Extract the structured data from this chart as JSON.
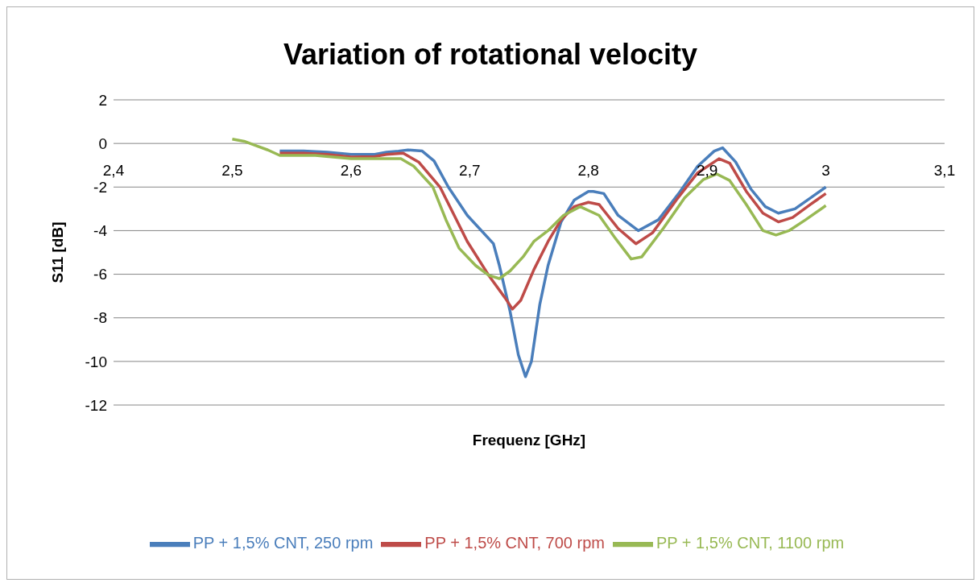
{
  "chart_data": {
    "type": "line",
    "title": "Variation of rotational velocity",
    "xlabel": "Frequenz [GHz]",
    "ylabel": "S11 [dB]",
    "xlim": [
      2.4,
      3.1
    ],
    "xticks": [
      {
        "value": 2.4,
        "label": "2,4"
      },
      {
        "value": 2.5,
        "label": "2,5"
      },
      {
        "value": 2.6,
        "label": "2,6"
      },
      {
        "value": 2.7,
        "label": "2,7"
      },
      {
        "value": 2.8,
        "label": "2,8"
      },
      {
        "value": 2.9,
        "label": "2,9"
      },
      3,
      {
        "value": 3.1,
        "label": "3,1"
      }
    ],
    "ylim": [
      -12,
      2
    ],
    "yticks": [
      -12,
      -10,
      -8,
      -6,
      -4,
      -2,
      0,
      2
    ],
    "grid": "y",
    "legend": "bottom",
    "marker": "none",
    "line_style": "solid",
    "series": [
      {
        "name": "PP + 1,5% CNT, 250 rpm",
        "color": "#4a7ebb",
        "x": [
          2.54,
          2.56,
          2.58,
          2.6,
          2.62,
          2.63,
          2.64,
          2.648,
          2.66,
          2.67,
          2.675,
          2.682,
          2.698,
          2.72,
          2.725,
          2.734,
          2.741,
          2.747,
          2.752,
          2.759,
          2.766,
          2.777,
          2.788,
          2.8,
          2.804,
          2.813,
          2.825,
          2.842,
          2.859,
          2.876,
          2.892,
          2.906,
          2.913,
          2.924,
          2.937,
          2.949,
          2.96,
          2.974,
          2.987,
          3.0
        ],
        "values": [
          -0.35,
          -0.35,
          -0.4,
          -0.5,
          -0.5,
          -0.4,
          -0.35,
          -0.3,
          -0.35,
          -0.8,
          -1.3,
          -2.0,
          -3.3,
          -4.6,
          -5.6,
          -7.7,
          -9.7,
          -10.7,
          -10.0,
          -7.4,
          -5.6,
          -3.6,
          -2.6,
          -2.2,
          -2.2,
          -2.3,
          -3.3,
          -4.0,
          -3.5,
          -2.3,
          -1.05,
          -0.35,
          -0.2,
          -0.85,
          -2.1,
          -2.9,
          -3.2,
          -3.0,
          -2.5,
          -2.0
        ]
      },
      {
        "name": "PP + 1,5% CNT, 700 rpm",
        "color": "#be4b48",
        "x": [
          2.54,
          2.56,
          2.58,
          2.6,
          2.62,
          2.63,
          2.644,
          2.657,
          2.675,
          2.687,
          2.698,
          2.716,
          2.73,
          2.736,
          2.743,
          2.754,
          2.766,
          2.777,
          2.788,
          2.8,
          2.809,
          2.825,
          2.84,
          2.854,
          2.874,
          2.892,
          2.91,
          2.919,
          2.933,
          2.947,
          2.96,
          2.972,
          2.987,
          3.0
        ],
        "values": [
          -0.45,
          -0.45,
          -0.5,
          -0.62,
          -0.6,
          -0.5,
          -0.45,
          -0.85,
          -2.0,
          -3.3,
          -4.5,
          -6.05,
          -7.1,
          -7.6,
          -7.2,
          -5.8,
          -4.5,
          -3.5,
          -2.9,
          -2.7,
          -2.8,
          -3.9,
          -4.6,
          -4.1,
          -2.6,
          -1.35,
          -0.7,
          -0.9,
          -2.2,
          -3.2,
          -3.6,
          -3.4,
          -2.8,
          -2.3
        ]
      },
      {
        "name": "PP + 1,5% CNT, 1100 rpm",
        "color": "#98b954",
        "x": [
          2.5,
          2.51,
          2.52,
          2.53,
          2.54,
          2.56,
          2.57,
          2.6,
          2.62,
          2.642,
          2.653,
          2.669,
          2.68,
          2.691,
          2.705,
          2.716,
          2.725,
          2.734,
          2.745,
          2.754,
          2.766,
          2.779,
          2.793,
          2.809,
          2.822,
          2.836,
          2.845,
          2.863,
          2.881,
          2.897,
          2.908,
          2.919,
          2.933,
          2.947,
          2.958,
          2.969,
          2.983,
          3.0
        ],
        "values": [
          0.2,
          0.1,
          -0.1,
          -0.3,
          -0.55,
          -0.55,
          -0.55,
          -0.7,
          -0.7,
          -0.7,
          -1.05,
          -2.0,
          -3.5,
          -4.8,
          -5.6,
          -6.05,
          -6.2,
          -5.85,
          -5.2,
          -4.5,
          -4.0,
          -3.3,
          -2.9,
          -3.3,
          -4.3,
          -5.3,
          -5.2,
          -3.9,
          -2.5,
          -1.65,
          -1.4,
          -1.7,
          -2.8,
          -4.0,
          -4.2,
          -4.0,
          -3.5,
          -2.85
        ]
      }
    ]
  }
}
